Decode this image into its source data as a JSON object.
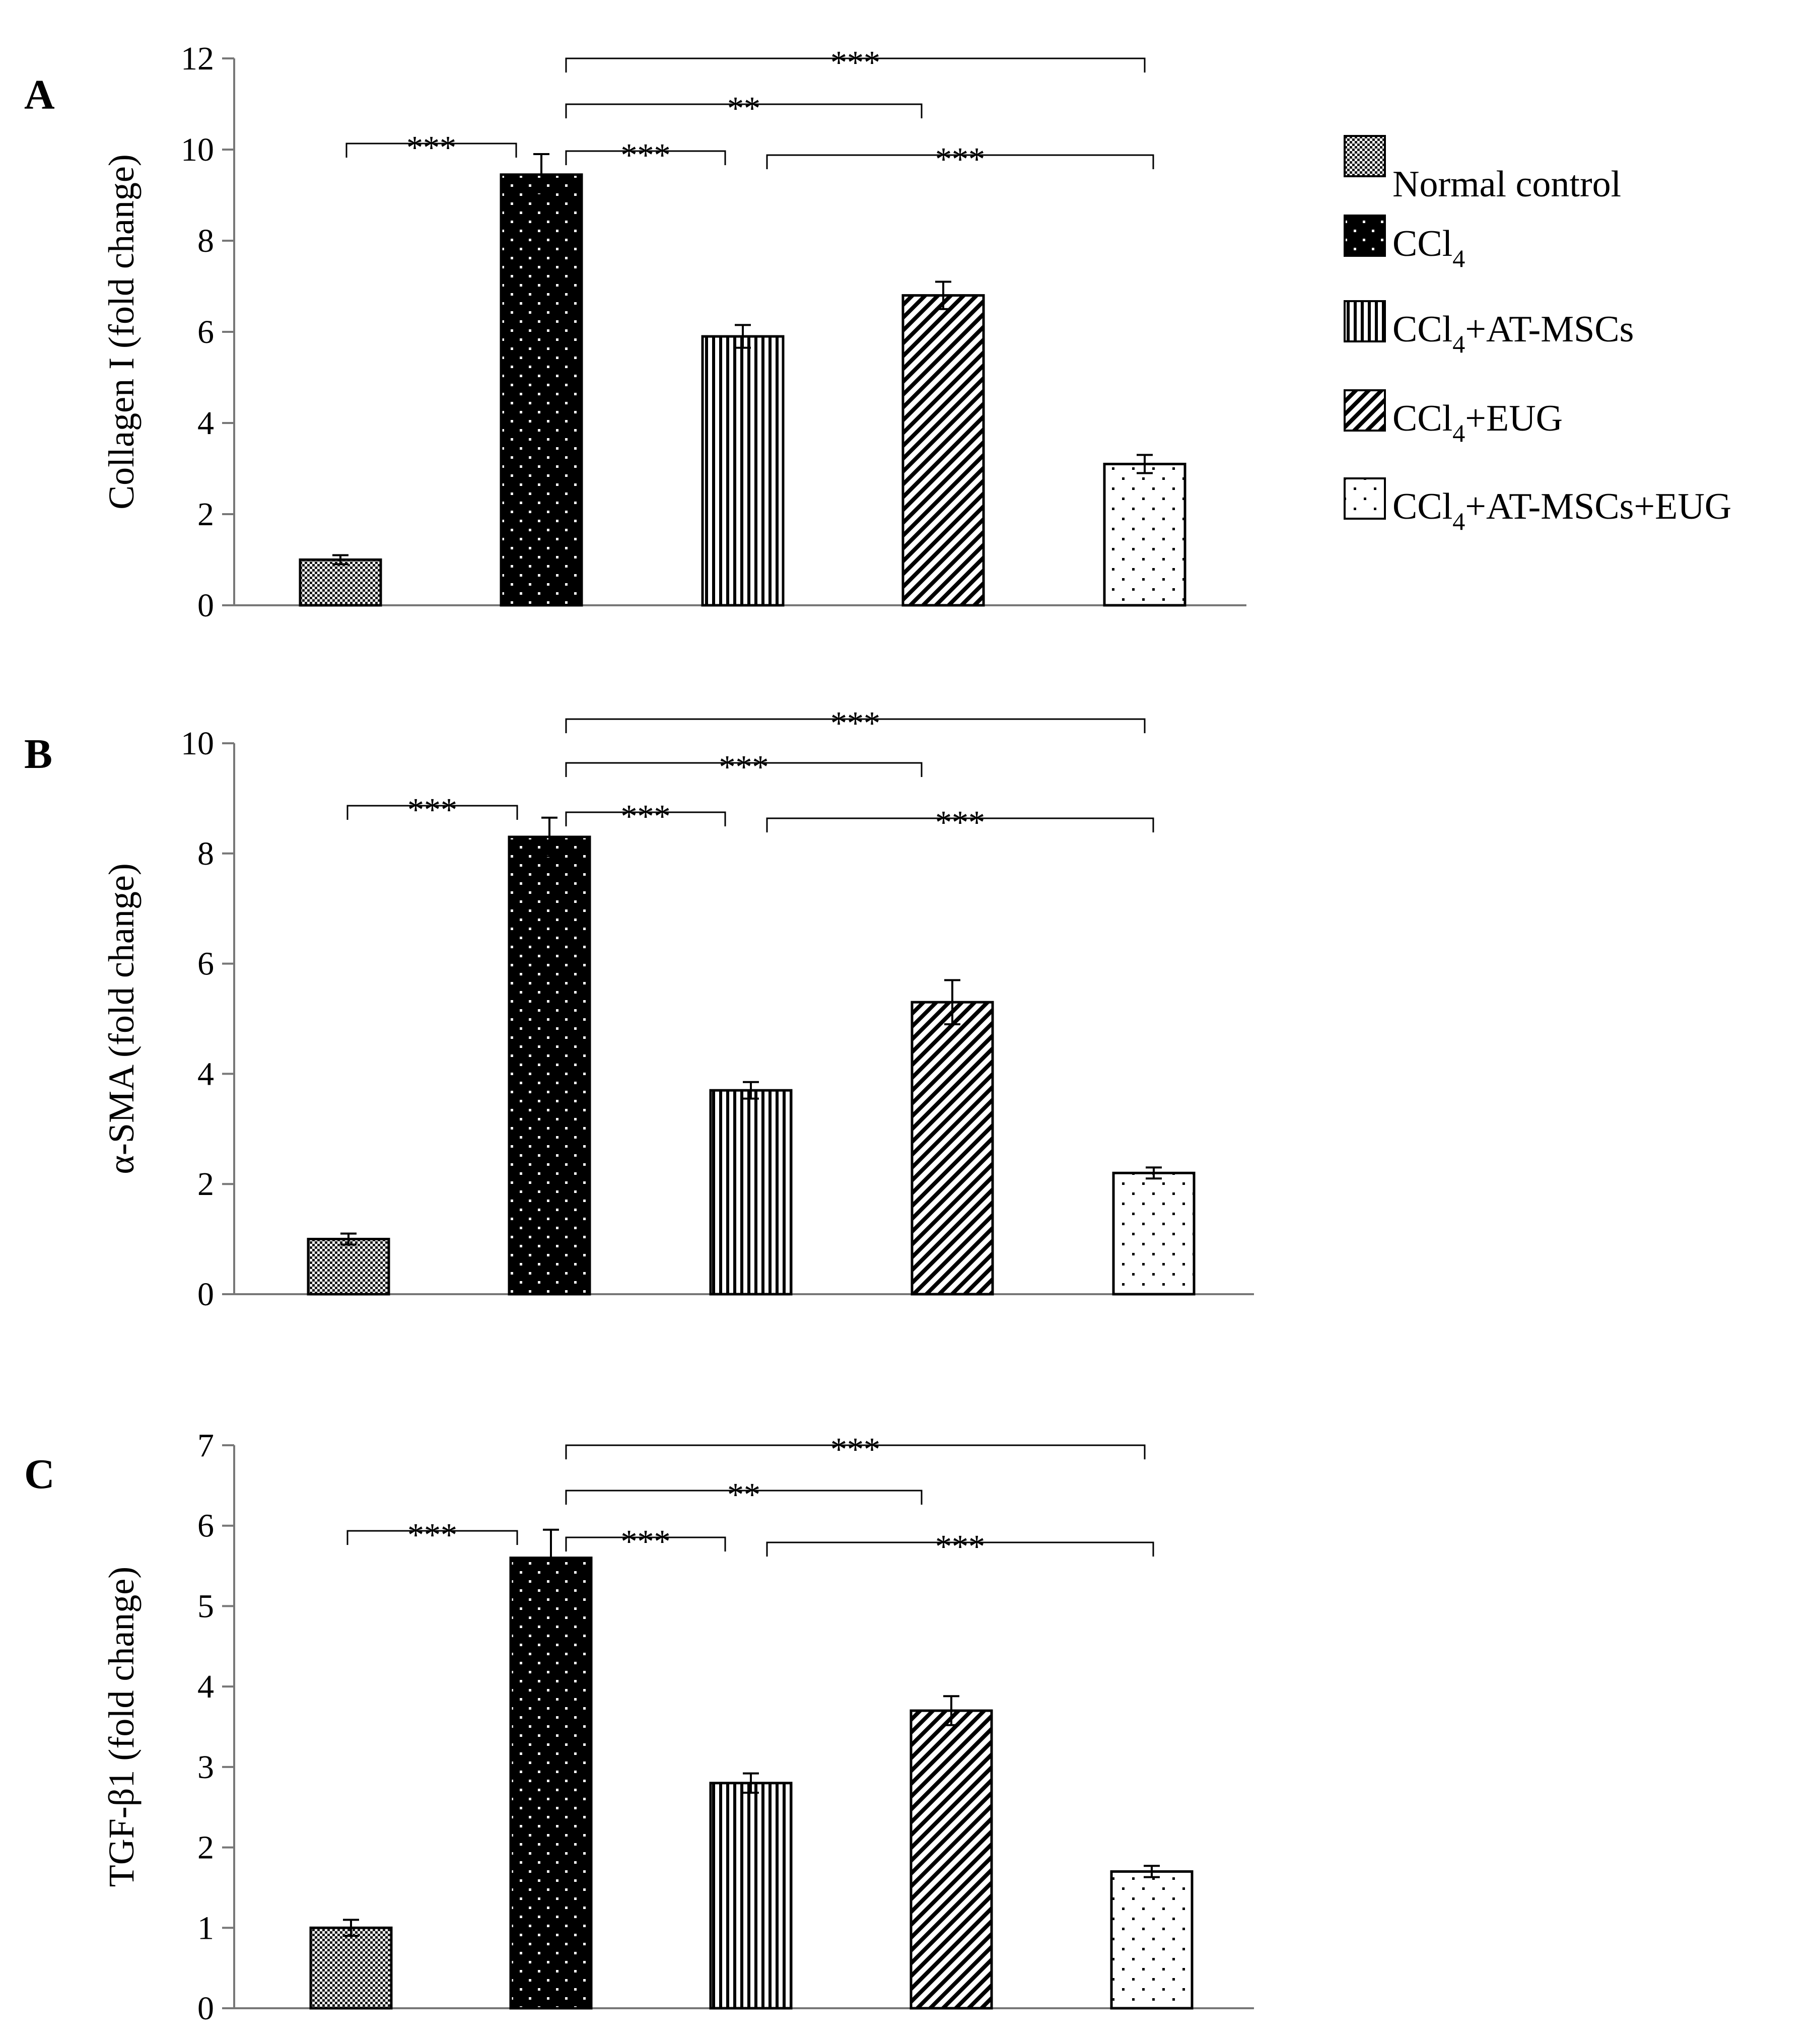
{
  "legend": [
    {
      "group": "normal",
      "main": "Normal control",
      "sub": "",
      "rest": ""
    },
    {
      "group": "ccl4",
      "main": "CCl",
      "sub": "4",
      "rest": ""
    },
    {
      "group": "mscs",
      "main": "CCl",
      "sub": "4",
      "rest": "+AT-MSCs"
    },
    {
      "group": "eug",
      "main": "CCl",
      "sub": "4",
      "rest": "+EUG"
    },
    {
      "group": "combo",
      "main": "CCl",
      "sub": "4",
      "rest": "+AT-MSCs+EUG"
    }
  ],
  "chart_data": [
    {
      "type": "bar",
      "panel": "A",
      "ylabel": "Collagen I (fold change)",
      "ylim": [
        0,
        12
      ],
      "yticks": [
        0,
        2,
        4,
        6,
        8,
        10,
        12
      ],
      "categories": [
        "Normal control",
        "CCl4",
        "CCl4+AT-MSCs",
        "CCl4+EUG",
        "CCl4+AT-MSCs+EUG"
      ],
      "values": [
        1.0,
        9.45,
        5.9,
        6.8,
        3.1
      ],
      "errors": [
        0.1,
        0.45,
        0.25,
        0.3,
        0.2
      ],
      "significance": [
        {
          "from": 0,
          "to": 1,
          "label": "***"
        },
        {
          "from": 1,
          "to": 2,
          "label": "***"
        },
        {
          "from": 1,
          "to": 3,
          "label": "**"
        },
        {
          "from": 1,
          "to": 4,
          "label": "***"
        },
        {
          "from": 2,
          "to": 4,
          "label": "***"
        }
      ]
    },
    {
      "type": "bar",
      "panel": "B",
      "ylabel": "α-SMA (fold change)",
      "ylim": [
        0,
        10
      ],
      "yticks": [
        0,
        2,
        4,
        6,
        8,
        10
      ],
      "categories": [
        "Normal control",
        "CCl4",
        "CCl4+AT-MSCs",
        "CCl4+EUG",
        "CCl4+AT-MSCs+EUG"
      ],
      "values": [
        1.0,
        8.3,
        3.7,
        5.3,
        2.2
      ],
      "errors": [
        0.1,
        0.35,
        0.15,
        0.4,
        0.1
      ],
      "significance": [
        {
          "from": 0,
          "to": 1,
          "label": "***"
        },
        {
          "from": 1,
          "to": 2,
          "label": "***"
        },
        {
          "from": 1,
          "to": 3,
          "label": "***"
        },
        {
          "from": 1,
          "to": 4,
          "label": "***"
        },
        {
          "from": 2,
          "to": 4,
          "label": "***"
        }
      ]
    },
    {
      "type": "bar",
      "panel": "C",
      "ylabel": "TGF-β1 (fold change)",
      "ylim": [
        0,
        7
      ],
      "yticks": [
        0,
        1,
        2,
        3,
        4,
        5,
        6,
        7
      ],
      "categories": [
        "Normal control",
        "CCl4",
        "CCl4+AT-MSCs",
        "CCl4+EUG",
        "CCl4+AT-MSCs+EUG"
      ],
      "values": [
        1.0,
        5.6,
        2.8,
        3.7,
        1.7
      ],
      "errors": [
        0.1,
        0.35,
        0.12,
        0.18,
        0.07
      ],
      "significance": [
        {
          "from": 0,
          "to": 1,
          "label": "***"
        },
        {
          "from": 1,
          "to": 2,
          "label": "***"
        },
        {
          "from": 1,
          "to": 3,
          "label": "**"
        },
        {
          "from": 1,
          "to": 4,
          "label": "***"
        },
        {
          "from": 2,
          "to": 4,
          "label": "***"
        }
      ]
    }
  ]
}
